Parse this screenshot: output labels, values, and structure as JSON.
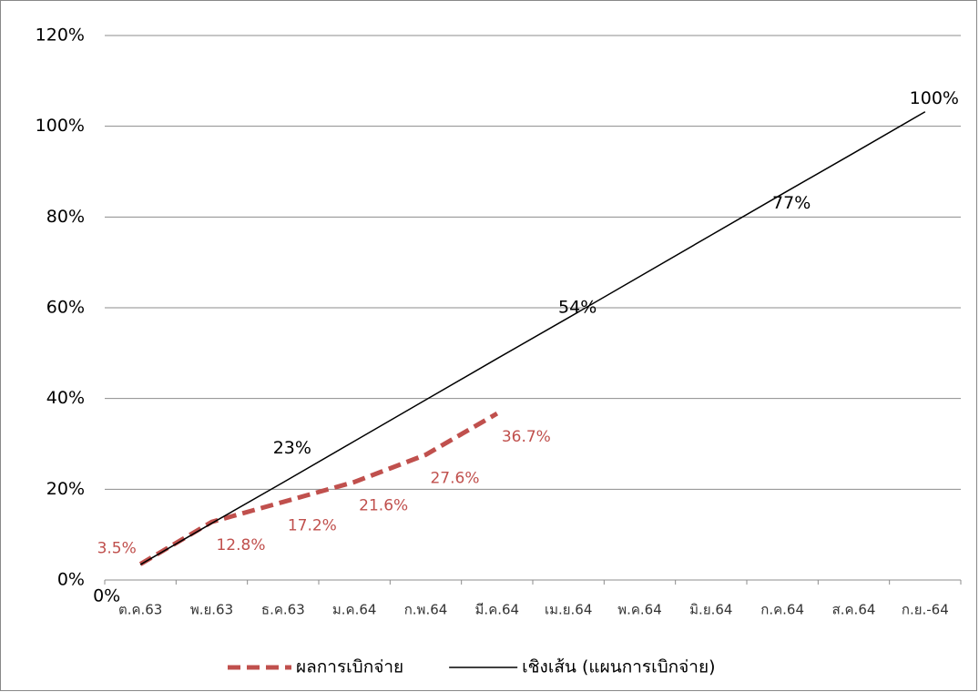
{
  "chart_data": {
    "type": "line",
    "categories": [
      "ต.ค.63",
      "พ.ย.63",
      "ธ.ค.63",
      "ม.ค.64",
      "ก.พ.64",
      "มี.ค.64",
      "เม.ย.64",
      "พ.ค.64",
      "มิ.ย.64",
      "ก.ค.64",
      "ส.ค.64",
      "ก.ย.-64"
    ],
    "series": [
      {
        "name": "ผลการเบิกจ่าย",
        "color": "#c0504d",
        "dashed": true,
        "values": [
          3.5,
          12.8,
          17.2,
          21.6,
          27.6,
          36.7,
          null,
          null,
          null,
          null,
          null,
          null
        ],
        "value_labels": [
          "3.5%",
          "12.8%",
          "17.2%",
          "21.6%",
          "27.6%",
          "36.7%",
          null,
          null,
          null,
          null,
          null,
          null
        ]
      },
      {
        "name": "เชิงเส้น (แผนการเบิกจ่าย)",
        "color": "#000000",
        "dashed": false,
        "values": [
          3.4,
          12.5,
          21.5,
          30.6,
          39.7,
          48.8,
          57.8,
          66.9,
          76.0,
          85.1,
          94.1,
          103.2
        ]
      }
    ],
    "annotations": [
      {
        "text": "0%",
        "x": "ต.ค.63",
        "y": 0
      },
      {
        "text": "23%",
        "x": "ธ.ค.63",
        "y": 23
      },
      {
        "text": "54%",
        "x": "เม.ย.64",
        "y": 54
      },
      {
        "text": "77%",
        "x": "ก.ค.64",
        "y": 77
      },
      {
        "text": "100%",
        "x": "ก.ย.-64",
        "y": 100
      }
    ],
    "ylim": [
      0,
      120
    ],
    "yticks": [
      {
        "value": 0,
        "label": "0%"
      },
      {
        "value": 20,
        "label": "20%"
      },
      {
        "value": 40,
        "label": "40%"
      },
      {
        "value": 60,
        "label": "60%"
      },
      {
        "value": 80,
        "label": "80%"
      },
      {
        "value": 100,
        "label": "100%"
      },
      {
        "value": 120,
        "label": "120%"
      }
    ],
    "grid": true,
    "legend": "bottom"
  }
}
